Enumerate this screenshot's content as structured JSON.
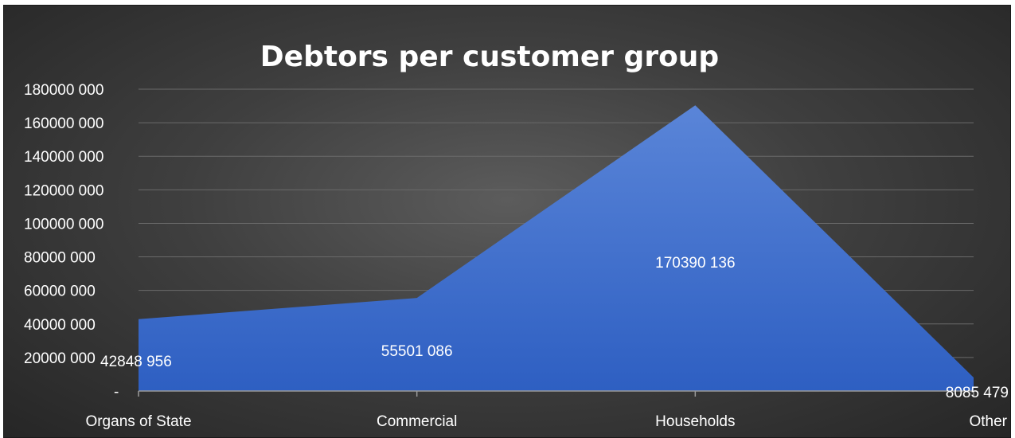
{
  "chart_data": {
    "type": "area",
    "title": "Debtors per customer group",
    "categories": [
      "Organs of State",
      "Commercial",
      "Households",
      "Other"
    ],
    "values": [
      42848956,
      55501086,
      170390136,
      8085479
    ],
    "data_labels": [
      "42848 956",
      "55501 086",
      "170390 136",
      "8085 479"
    ],
    "ylim": [
      0,
      180000000
    ],
    "yticks": [
      {
        "value": 0,
        "label": "-"
      },
      {
        "value": 20000000,
        "label": "20000 000"
      },
      {
        "value": 40000000,
        "label": "40000 000"
      },
      {
        "value": 60000000,
        "label": "60000 000"
      },
      {
        "value": 80000000,
        "label": "80000 000"
      },
      {
        "value": 100000000,
        "label": "100000 000"
      },
      {
        "value": 120000000,
        "label": "120000 000"
      },
      {
        "value": 140000000,
        "label": "140000 000"
      },
      {
        "value": 160000000,
        "label": "160000 000"
      },
      {
        "value": 180000000,
        "label": "180000 000"
      }
    ],
    "grid": true,
    "legend": "none",
    "colors": {
      "fill": "#3f6fd1",
      "fill_light": "#5a85d8",
      "grid": "#6a6a6a",
      "text": "#ffffff",
      "background": "#3a3a3a"
    }
  }
}
